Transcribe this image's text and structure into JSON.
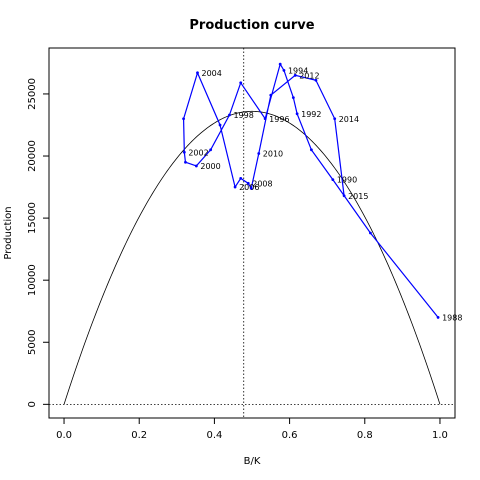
{
  "chart_data": {
    "type": "line",
    "title": "Production curve",
    "xlabel": "B/K",
    "ylabel": "Production",
    "xlim": [
      -0.04,
      1.04
    ],
    "ylim": [
      -1100,
      28700
    ],
    "x_ticks": [
      "0.0",
      "0.2",
      "0.4",
      "0.6",
      "0.8",
      "1.0"
    ],
    "y_ticks": [
      "0",
      "5000",
      "10000",
      "15000",
      "20000",
      "25000"
    ],
    "vertical_reference_x": 0.478,
    "horizontal_reference_y": 0,
    "model_curve": {
      "r_k_peak": 23600,
      "from": 0,
      "to": 1
    },
    "series": [
      {
        "color": "#0000ff",
        "points": [
          {
            "year": "1988",
            "x": 0.995,
            "y": 7000
          },
          {
            "year": "1989",
            "x": 0.815,
            "y": 13800
          },
          {
            "year": "1990",
            "x": 0.715,
            "y": 18100
          },
          {
            "year": "1991",
            "x": 0.658,
            "y": 20500
          },
          {
            "year": "1992",
            "x": 0.62,
            "y": 23400
          },
          {
            "year": "1993",
            "x": 0.61,
            "y": 24700
          },
          {
            "year": "1994",
            "x": 0.585,
            "y": 26900
          },
          {
            "year": "1995",
            "x": 0.575,
            "y": 27400
          },
          {
            "year": "1996",
            "x": 0.535,
            "y": 23000
          },
          {
            "year": "1997",
            "x": 0.47,
            "y": 25900
          },
          {
            "year": "1998",
            "x": 0.44,
            "y": 23300
          },
          {
            "year": "1999",
            "x": 0.39,
            "y": 20500
          },
          {
            "year": "2000",
            "x": 0.352,
            "y": 19200
          },
          {
            "year": "2001",
            "x": 0.323,
            "y": 19500
          },
          {
            "year": "2002",
            "x": 0.32,
            "y": 20300
          },
          {
            "year": "2003",
            "x": 0.318,
            "y": 23000
          },
          {
            "year": "2004",
            "x": 0.355,
            "y": 26700
          },
          {
            "year": "2005",
            "x": 0.415,
            "y": 22500
          },
          {
            "year": "2006",
            "x": 0.455,
            "y": 17500
          },
          {
            "year": "2007",
            "x": 0.47,
            "y": 18200
          },
          {
            "year": "2008",
            "x": 0.49,
            "y": 17800
          },
          {
            "year": "2009",
            "x": 0.498,
            "y": 17400
          },
          {
            "year": "2010",
            "x": 0.518,
            "y": 20200
          },
          {
            "year": "2011",
            "x": 0.55,
            "y": 24900
          },
          {
            "year": "2012",
            "x": 0.615,
            "y": 26500
          },
          {
            "year": "2013",
            "x": 0.67,
            "y": 26100
          },
          {
            "year": "2014",
            "x": 0.72,
            "y": 23000
          },
          {
            "year": "2015",
            "x": 0.745,
            "y": 16800
          }
        ]
      }
    ],
    "labels_shown": [
      "1988",
      "1990",
      "1992",
      "1994",
      "1996",
      "1998",
      "2000",
      "2002",
      "2004",
      "2006",
      "2008",
      "2010",
      "2012",
      "2014",
      "2015"
    ],
    "grid": false,
    "legend": "none"
  }
}
